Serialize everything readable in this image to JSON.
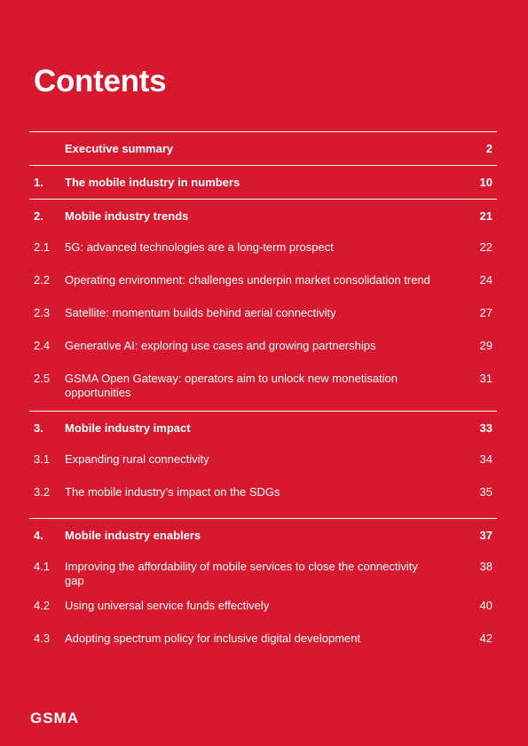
{
  "header": {
    "title": "Contents"
  },
  "sections": [
    {
      "title": "Executive summary",
      "page": "2",
      "items": []
    },
    {
      "number": "1.",
      "title": "The mobile industry in numbers",
      "page": "10",
      "items": []
    },
    {
      "number": "2.",
      "title": "Mobile industry trends",
      "page": "21",
      "items": [
        {
          "number": "2.1",
          "title": "5G: advanced technologies are a long-term prospect",
          "page": "22"
        },
        {
          "number": "2.2",
          "title": "Operating environment: challenges underpin market consolidation trend",
          "page": "24"
        },
        {
          "number": "2.3",
          "title": "Satellite: momentum builds behind aerial connectivity",
          "page": "27"
        },
        {
          "number": "2.4",
          "title": "Generative AI: exploring use cases and growing partnerships",
          "page": "29"
        },
        {
          "number": "2.5",
          "title": "GSMA Open Gateway: operators aim to unlock new monetisation opportunities",
          "page": "31"
        }
      ]
    },
    {
      "number": "3.",
      "title": "Mobile industry impact",
      "page": "33",
      "items": [
        {
          "number": "3.1",
          "title": "Expanding rural connectivity",
          "page": "34"
        },
        {
          "number": "3.2",
          "title": "The mobile industry’s impact on the SDGs",
          "page": "35"
        }
      ]
    },
    {
      "number": "4.",
      "title": "Mobile industry enablers",
      "page": "37",
      "items": [
        {
          "number": "4.1",
          "title": "Improving the affordability of mobile services to close the connectivity gap",
          "page": "38"
        },
        {
          "number": "4.2",
          "title": "Using universal service funds effectively",
          "page": "40"
        },
        {
          "number": "4.3",
          "title": "Adopting spectrum policy for inclusive digital development",
          "page": "42"
        }
      ]
    }
  ],
  "footer": {
    "logo": "GSMA"
  }
}
